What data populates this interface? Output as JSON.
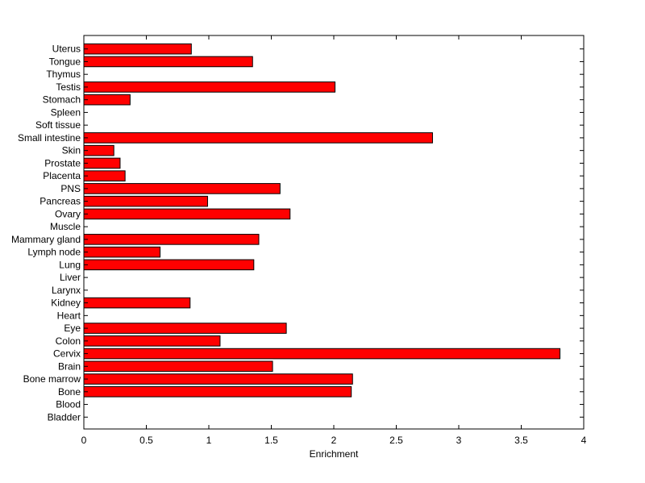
{
  "chart_data": {
    "type": "bar",
    "orientation": "horizontal",
    "title": "",
    "xlabel": "Enrichment",
    "ylabel": "",
    "xlim": [
      0,
      4
    ],
    "x_ticks": [
      0,
      0.5,
      1,
      1.5,
      2,
      2.5,
      3,
      3.5,
      4
    ],
    "x_tick_labels": [
      "0",
      "0.5",
      "1",
      "1.5",
      "2",
      "2.5",
      "3",
      "3.5",
      "4"
    ],
    "categories": [
      "Bladder",
      "Blood",
      "Bone",
      "Bone marrow",
      "Brain",
      "Cervix",
      "Colon",
      "Eye",
      "Heart",
      "Kidney",
      "Larynx",
      "Liver",
      "Lung",
      "Lymph node",
      "Mammary gland",
      "Muscle",
      "Ovary",
      "Pancreas",
      "PNS",
      "Placenta",
      "Prostate",
      "Skin",
      "Small intestine",
      "Soft tissue",
      "Spleen",
      "Stomach",
      "Testis",
      "Thymus",
      "Tongue",
      "Uterus"
    ],
    "values": [
      0,
      0,
      2.14,
      2.15,
      1.51,
      3.81,
      1.09,
      1.62,
      0,
      0.85,
      0,
      0,
      1.36,
      0.61,
      1.4,
      0,
      1.65,
      0.99,
      1.57,
      0.33,
      0.29,
      0.24,
      2.79,
      0,
      0,
      0.37,
      2.01,
      0,
      1.35,
      0.86
    ],
    "bar_color": "#ff0000",
    "grid": false,
    "legend": "none"
  }
}
